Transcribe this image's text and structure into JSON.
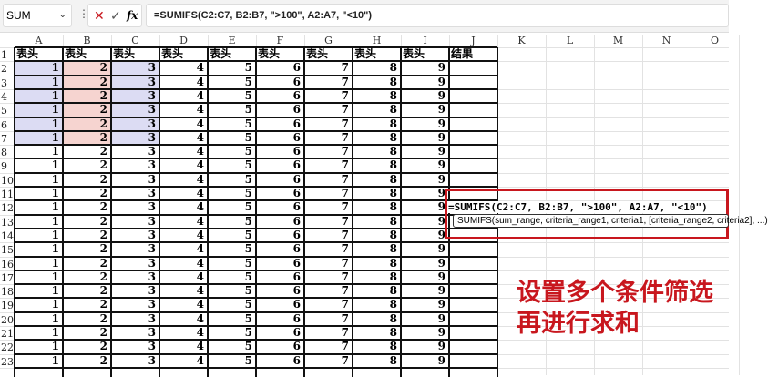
{
  "formula_bar": {
    "name_box": "SUM",
    "cancel_icon": "✕",
    "confirm_icon": "✓",
    "fx_label": "fx",
    "formula": "=SUMIFS(C2:C7, B2:B7, \">100\", A2:A7, \"<10\")"
  },
  "columns": [
    "A",
    "B",
    "C",
    "D",
    "E",
    "F",
    "G",
    "H",
    "I",
    "J",
    "K",
    "L",
    "M",
    "N",
    "O"
  ],
  "header_row": [
    "表头",
    "表头",
    "表头",
    "表头",
    "表头",
    "表头",
    "表头",
    "表头",
    "表头",
    "结果"
  ],
  "row_numbers": [
    1,
    2,
    3,
    4,
    5,
    6,
    7,
    8,
    9,
    10,
    11,
    12,
    13,
    14,
    15,
    16,
    17,
    18,
    19,
    20,
    21,
    22,
    23
  ],
  "row_values": [
    1,
    2,
    3,
    4,
    5,
    6,
    7,
    8,
    9
  ],
  "highlight_colors": {
    "A": "#dcdcf3",
    "B": "#f6d4d0",
    "C": "#dcdcf3"
  },
  "accent": "#c8171e",
  "cell_edit": "=SUMIFS(C2:C7, B2:B7, \">100\", A2:A7, \"<10\")",
  "tooltip": "SUMIFS(sum_range, criteria_range1, criteria1, [criteria_range2, criteria2], ...)",
  "caption": {
    "line1": "设置多个条件筛选",
    "line2": "再进行求和"
  }
}
